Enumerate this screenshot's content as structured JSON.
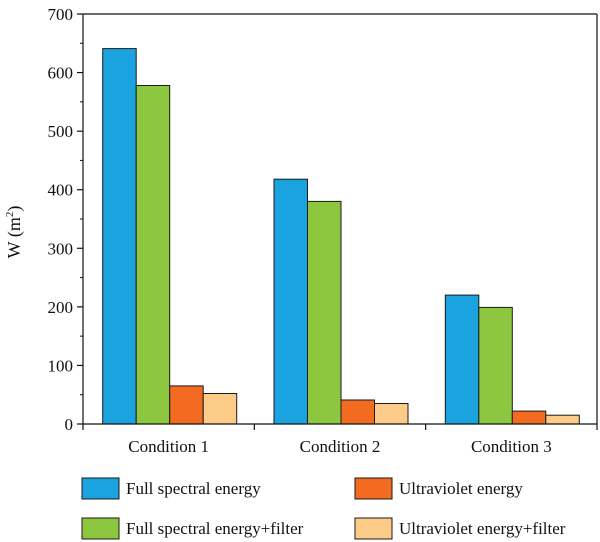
{
  "chart_data": {
    "type": "bar",
    "title": "",
    "xlabel": "",
    "ylabel": "W (m",
    "ylabel_sup": "2",
    "ylabel_close": ")",
    "categories": [
      "Condition 1",
      "Condition 2",
      "Condition 3"
    ],
    "ylim": [
      0,
      700
    ],
    "yticks": [
      0,
      100,
      200,
      300,
      400,
      500,
      600,
      700
    ],
    "grid": false,
    "legend_position": "bottom",
    "series": [
      {
        "name": "Full spectral energy",
        "color": "#1aa3de",
        "values": [
          641,
          418,
          220
        ]
      },
      {
        "name": "Full spectral energy+filter",
        "color": "#8dc63f",
        "values": [
          578,
          380,
          199
        ]
      },
      {
        "name": "Ultraviolet energy",
        "color": "#f26b21",
        "values": [
          65,
          41,
          22
        ]
      },
      {
        "name": "Ultraviolet energy+filter",
        "color": "#fccb87",
        "values": [
          52,
          35,
          15
        ]
      }
    ]
  }
}
